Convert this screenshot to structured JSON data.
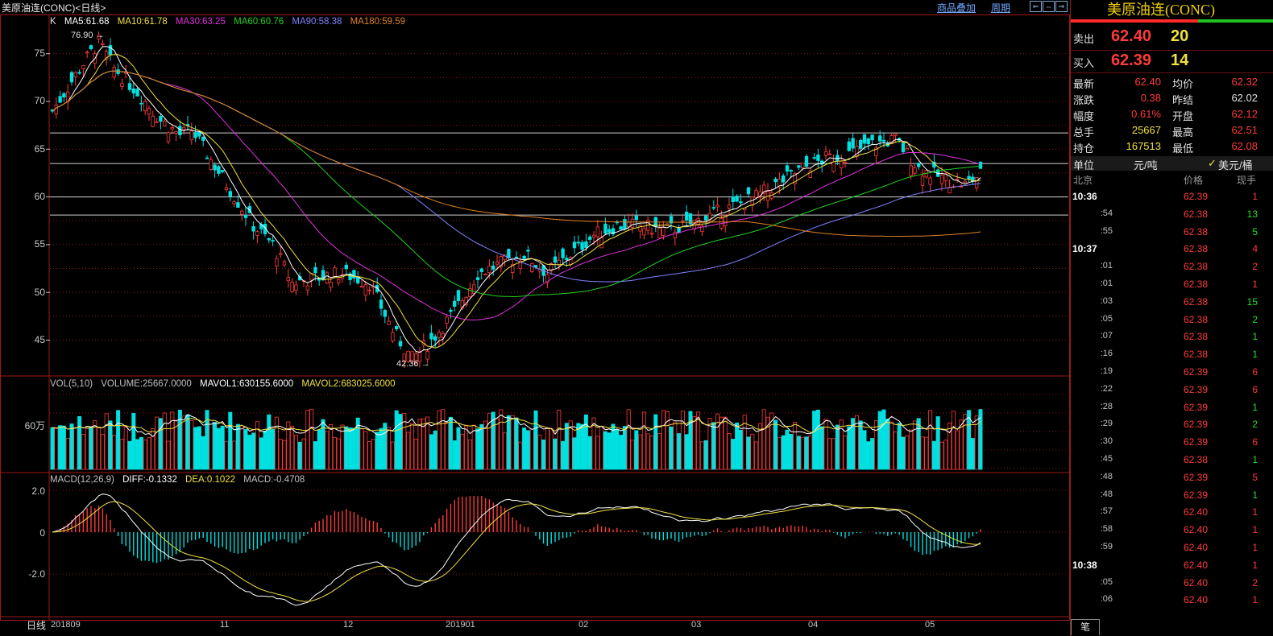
{
  "header": {
    "symbol_title": "美原油连(CONC)<日线>",
    "links": [
      "商品叠加",
      "周期"
    ],
    "nav_buttons": [
      "⇐",
      "⇔",
      "⇒"
    ]
  },
  "main_chart": {
    "label": "K",
    "indicators": [
      {
        "text": "MA5:61.68",
        "color": "#ffffff"
      },
      {
        "text": "MA10:61.78",
        "color": "#f0e040"
      },
      {
        "text": "MA30:63.25",
        "color": "#e030e0"
      },
      {
        "text": "MA60:60.76",
        "color": "#20d020"
      },
      {
        "text": "MA90:58.38",
        "color": "#8080ff"
      },
      {
        "text": "MA180:59.59",
        "color": "#e08020"
      }
    ],
    "y_ticks": [
      "75",
      "70",
      "65",
      "60",
      "55",
      "50",
      "45"
    ],
    "high_label": "76.90",
    "low_label": "42.36"
  },
  "volume_chart": {
    "label": "VOL(5,10)",
    "indicators": [
      {
        "text": "VOLUME:25667.0000",
        "color": "#c0c0c0"
      },
      {
        "text": "MAVOL1:630155.6000",
        "color": "#ffffff"
      },
      {
        "text": "MAVOL2:683025.6000",
        "color": "#f0e040"
      }
    ],
    "y_tick": "60万"
  },
  "macd_chart": {
    "label": "MACD(12,26,9)",
    "indicators": [
      {
        "text": "DIFF:-0.1332",
        "color": "#ffffff"
      },
      {
        "text": "DEA:0.1022",
        "color": "#f0e040"
      },
      {
        "text": "MACD:-0.4708",
        "color": "#c0c0c0"
      }
    ],
    "y_ticks": [
      "2.0",
      "0",
      "-2.0"
    ]
  },
  "x_axis": {
    "first_label": "日线",
    "labels": [
      "201809",
      "11",
      "12",
      "201901",
      "02",
      "03",
      "04",
      "05"
    ]
  },
  "quote_panel": {
    "title": "美原油连(CONC)",
    "sell_label": "卖出",
    "sell_price": "62.40",
    "sell_qty": "20",
    "buy_label": "买入",
    "buy_price": "62.39",
    "buy_qty": "14",
    "stats": [
      {
        "l1": "最新",
        "v1": "62.40",
        "c1": "#ff3a3a",
        "l2": "均价",
        "v2": "62.32",
        "c2": "#ff3a3a"
      },
      {
        "l1": "涨跌",
        "v1": "0.38",
        "c1": "#ff3a3a",
        "l2": "昨结",
        "v2": "62.02",
        "c2": "#e0e0e0"
      },
      {
        "l1": "幅度",
        "v1": "0.61%",
        "c1": "#ff3a3a",
        "l2": "开盘",
        "v2": "62.12",
        "c2": "#ff3a3a"
      },
      {
        "l1": "总手",
        "v1": "25667",
        "c1": "#f0e040",
        "l2": "最高",
        "v2": "62.51",
        "c2": "#ff3a3a"
      },
      {
        "l1": "持仓",
        "v1": "167513",
        "c1": "#f0e040",
        "l2": "最低",
        "v2": "62.08",
        "c2": "#ff3a3a"
      }
    ],
    "unit_label": "单位",
    "unit_option1": "元/吨",
    "unit_option2": "美元/桶",
    "tick_headers": [
      "北京",
      "价格",
      "现手"
    ],
    "ticks": [
      {
        "t": "10:36",
        "hour": true,
        "p": "62.39",
        "v": "1",
        "vc": "#ff3a3a"
      },
      {
        "t": ":54",
        "hour": false,
        "p": "62.38",
        "v": "13",
        "vc": "#20e020"
      },
      {
        "t": ":55",
        "hour": false,
        "p": "62.38",
        "v": "5",
        "vc": "#20e020"
      },
      {
        "t": "10:37",
        "hour": true,
        "p": "62.38",
        "v": "4",
        "vc": "#ff3a3a"
      },
      {
        "t": ":01",
        "hour": false,
        "p": "62.38",
        "v": "2",
        "vc": "#ff3a3a"
      },
      {
        "t": ":01",
        "hour": false,
        "p": "62.38",
        "v": "1",
        "vc": "#ff3a3a"
      },
      {
        "t": ":03",
        "hour": false,
        "p": "62.38",
        "v": "15",
        "vc": "#20e020"
      },
      {
        "t": ":05",
        "hour": false,
        "p": "62.38",
        "v": "2",
        "vc": "#20e020"
      },
      {
        "t": ":07",
        "hour": false,
        "p": "62.38",
        "v": "1",
        "vc": "#20e020"
      },
      {
        "t": ":16",
        "hour": false,
        "p": "62.38",
        "v": "1",
        "vc": "#20e020"
      },
      {
        "t": ":19",
        "hour": false,
        "p": "62.39",
        "v": "6",
        "vc": "#ff3a3a"
      },
      {
        "t": ":22",
        "hour": false,
        "p": "62.39",
        "v": "6",
        "vc": "#ff3a3a"
      },
      {
        "t": ":28",
        "hour": false,
        "p": "62.39",
        "v": "1",
        "vc": "#20e020"
      },
      {
        "t": ":29",
        "hour": false,
        "p": "62.39",
        "v": "2",
        "vc": "#20e020"
      },
      {
        "t": ":30",
        "hour": false,
        "p": "62.39",
        "v": "6",
        "vc": "#ff3a3a"
      },
      {
        "t": ":45",
        "hour": false,
        "p": "62.38",
        "v": "1",
        "vc": "#20e020"
      },
      {
        "t": ":48",
        "hour": false,
        "p": "62.39",
        "v": "5",
        "vc": "#ff3a3a"
      },
      {
        "t": ":48",
        "hour": false,
        "p": "62.39",
        "v": "1",
        "vc": "#20e020"
      },
      {
        "t": ":57",
        "hour": false,
        "p": "62.40",
        "v": "1",
        "vc": "#ff3a3a"
      },
      {
        "t": ":58",
        "hour": false,
        "p": "62.40",
        "v": "1",
        "vc": "#ff3a3a"
      },
      {
        "t": ":59",
        "hour": false,
        "p": "62.40",
        "v": "1",
        "vc": "#ff3a3a"
      },
      {
        "t": "10:38",
        "hour": true,
        "p": "62.40",
        "v": "1",
        "vc": "#ff3a3a"
      },
      {
        "t": ":05",
        "hour": false,
        "p": "62.40",
        "v": "2",
        "vc": "#ff3a3a"
      },
      {
        "t": ":06",
        "hour": false,
        "p": "62.40",
        "v": "1",
        "vc": "#ff3a3a"
      }
    ],
    "bottom_tab": "笔"
  },
  "colors": {
    "up": "#ff3a3a",
    "down": "#00e0e0",
    "grid": "#8a1a1a",
    "border": "#a01818"
  },
  "chart_data": {
    "type": "candlestick",
    "price_range": [
      42.36,
      76.9
    ],
    "horizontal_lines": [
      66.7,
      63.5,
      60.0,
      58.1
    ],
    "price_anchors": [
      {
        "i": 0,
        "c": 69
      },
      {
        "i": 8,
        "c": 74
      },
      {
        "i": 12,
        "c": 76.2
      },
      {
        "i": 16,
        "c": 73.5
      },
      {
        "i": 22,
        "c": 71
      },
      {
        "i": 28,
        "c": 68
      },
      {
        "i": 33,
        "c": 66.5
      },
      {
        "i": 36,
        "c": 67
      },
      {
        "i": 44,
        "c": 62
      },
      {
        "i": 52,
        "c": 57
      },
      {
        "i": 57,
        "c": 55
      },
      {
        "i": 62,
        "c": 51
      },
      {
        "i": 68,
        "c": 51.5
      },
      {
        "i": 75,
        "c": 52
      },
      {
        "i": 82,
        "c": 51
      },
      {
        "i": 88,
        "c": 46
      },
      {
        "i": 93,
        "c": 43
      },
      {
        "i": 98,
        "c": 45
      },
      {
        "i": 104,
        "c": 48
      },
      {
        "i": 110,
        "c": 52
      },
      {
        "i": 116,
        "c": 53
      },
      {
        "i": 122,
        "c": 54
      },
      {
        "i": 128,
        "c": 52
      },
      {
        "i": 134,
        "c": 54
      },
      {
        "i": 140,
        "c": 56
      },
      {
        "i": 146,
        "c": 57
      },
      {
        "i": 152,
        "c": 57
      },
      {
        "i": 158,
        "c": 56.5
      },
      {
        "i": 164,
        "c": 57
      },
      {
        "i": 170,
        "c": 58
      },
      {
        "i": 176,
        "c": 59
      },
      {
        "i": 182,
        "c": 60
      },
      {
        "i": 188,
        "c": 61.5
      },
      {
        "i": 194,
        "c": 63
      },
      {
        "i": 200,
        "c": 64
      },
      {
        "i": 206,
        "c": 64.5
      },
      {
        "i": 212,
        "c": 65.5
      },
      {
        "i": 218,
        "c": 66
      },
      {
        "i": 224,
        "c": 63
      },
      {
        "i": 230,
        "c": 62
      },
      {
        "i": 236,
        "c": 61.3
      },
      {
        "i": 240,
        "c": 62.4
      }
    ],
    "bar_count": 241,
    "x_labels": [
      "201809",
      "11",
      "12",
      "201901",
      "02",
      "03",
      "04",
      "05"
    ],
    "macd_range": [
      -3.5,
      2.3
    ]
  }
}
